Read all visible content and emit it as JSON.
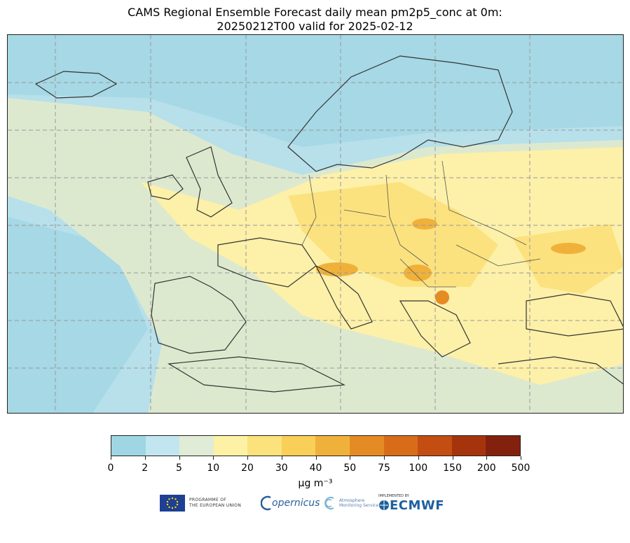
{
  "title_line1": "CAMS Regional Ensemble Forecast daily mean pm2p5_conc at 0m:",
  "title_line2": "20250212T00 valid for 2025-02-12",
  "colorbar": {
    "ticks": [
      "0",
      "2",
      "5",
      "10",
      "20",
      "30",
      "40",
      "50",
      "75",
      "100",
      "150",
      "200",
      "500"
    ],
    "colors": [
      "#9fd6e3",
      "#c2e6ef",
      "#e0ecd5",
      "#fdf1a6",
      "#fce27c",
      "#f9cf58",
      "#f0b13a",
      "#e58b24",
      "#d96c19",
      "#c44d12",
      "#a5340d",
      "#82220e"
    ],
    "unit": "μg m⁻³"
  },
  "map": {
    "background_color": "#b7e0ea",
    "gridline_color": "#9a9a9a",
    "coastline_color": "#333333"
  },
  "logos": {
    "eu_line1": "PROGRAMME OF",
    "eu_line2": "THE EUROPEAN UNION",
    "copernicus": "opernicus",
    "cams_line1": "Atmosphere",
    "cams_line2": "Monitoring Service",
    "ecmwf_small": "IMPLEMENTED BY",
    "ecmwf": "ECMWF"
  }
}
